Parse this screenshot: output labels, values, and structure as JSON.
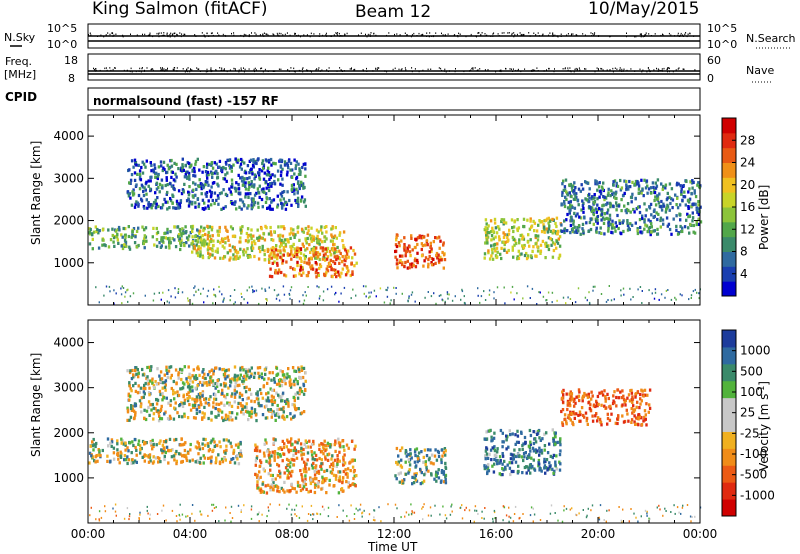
{
  "header": {
    "site": "King Salmon (fitACF)",
    "beam": "Beam 12",
    "date": "10/May/2015"
  },
  "strips": {
    "nsky_label": "N.Sky",
    "nsky_ticks": [
      "10^5",
      "10^0"
    ],
    "nsearch_label": "N.Search",
    "nsearch_ticks": [
      "10^5",
      "10^0"
    ],
    "freq_label": "Freq.",
    "freq_unit": "[MHz]",
    "freq_ticks": [
      "18",
      "8"
    ],
    "nave_label": "Nave",
    "nave_ticks": [
      "60",
      "0"
    ],
    "cpid_label": "CPID",
    "cpid_text": "normalsound (fast) -157 RF"
  },
  "axes": {
    "xlabel": "Time UT",
    "ylabel": "Slant Range [km]",
    "xticks": [
      "00:00",
      "04:00",
      "08:00",
      "12:00",
      "16:00",
      "20:00",
      "00:00"
    ],
    "yticks": [
      "1000",
      "2000",
      "3000",
      "4000"
    ]
  },
  "colorbars": {
    "power": {
      "title": "Power [dB]",
      "ticks": [
        "4",
        "8",
        "12",
        "16",
        "20",
        "24",
        "28"
      ],
      "colors": [
        "#0000d0",
        "#1a3fb0",
        "#2f6aa0",
        "#3a8a6a",
        "#52a74a",
        "#8cc43a",
        "#c8d428",
        "#f0c020",
        "#f09018",
        "#e85a14",
        "#e02a10",
        "#d00000"
      ]
    },
    "velocity": {
      "title": "Velocity [m s",
      "title_sup": "-1",
      "title_end": "]",
      "ticks": [
        "1000",
        "500",
        "100",
        "25",
        "-25",
        "-100",
        "-500",
        "-1000"
      ],
      "colors": [
        "#1d3c9c",
        "#2f6aa0",
        "#3a8a6a",
        "#52b33c",
        "#c8c8c8",
        "#c8c8c8",
        "#f0b020",
        "#f08c18",
        "#ec5a14",
        "#e02a10",
        "#d00000"
      ]
    }
  },
  "chart_data": [
    {
      "type": "heatmap",
      "title": "",
      "quantity": "Power",
      "xlabel": "Time UT",
      "ylabel": "Slant Range [km]",
      "xlim": [
        0,
        24
      ],
      "ylim": [
        0,
        4500
      ],
      "colorbar_range_db": [
        0,
        32
      ],
      "clusters": [
        {
          "t_start": 0.0,
          "t_end": 4.5,
          "r_min": 1350,
          "r_max": 1900,
          "level": 12
        },
        {
          "t_start": 4.0,
          "t_end": 10.0,
          "r_min": 1100,
          "r_max": 1900,
          "level": 18
        },
        {
          "t_start": 7.0,
          "t_end": 10.5,
          "r_min": 700,
          "r_max": 1400,
          "level": 24
        },
        {
          "t_start": 1.5,
          "t_end": 8.5,
          "r_min": 2300,
          "r_max": 3500,
          "level": 6
        },
        {
          "t_start": 12.0,
          "t_end": 14.0,
          "r_min": 900,
          "r_max": 1700,
          "level": 26
        },
        {
          "t_start": 15.5,
          "t_end": 18.5,
          "r_min": 1100,
          "r_max": 2100,
          "level": 16
        },
        {
          "t_start": 18.5,
          "t_end": 24.0,
          "r_min": 1700,
          "r_max": 3000,
          "level": 8
        }
      ]
    },
    {
      "type": "heatmap",
      "title": "",
      "quantity": "Velocity",
      "xlabel": "Time UT",
      "ylabel": "Slant Range [km]",
      "xlim": [
        0,
        24
      ],
      "ylim": [
        0,
        4500
      ],
      "colorbar_range_ms": [
        -1000,
        1000
      ],
      "clusters": [
        {
          "t_start": 0.0,
          "t_end": 6.0,
          "r_min": 1350,
          "r_max": 1900,
          "velocity": 0
        },
        {
          "t_start": 6.5,
          "t_end": 10.5,
          "r_min": 700,
          "r_max": 1900,
          "velocity": -150
        },
        {
          "t_start": 1.5,
          "t_end": 8.5,
          "r_min": 2300,
          "r_max": 3500,
          "velocity": 0
        },
        {
          "t_start": 12.0,
          "t_end": 14.0,
          "r_min": 900,
          "r_max": 1700,
          "velocity": 150
        },
        {
          "t_start": 15.5,
          "t_end": 18.5,
          "r_min": 1100,
          "r_max": 2100,
          "velocity": 300
        },
        {
          "t_start": 18.5,
          "t_end": 22.0,
          "r_min": 2200,
          "r_max": 3000,
          "velocity": -400
        }
      ]
    }
  ]
}
